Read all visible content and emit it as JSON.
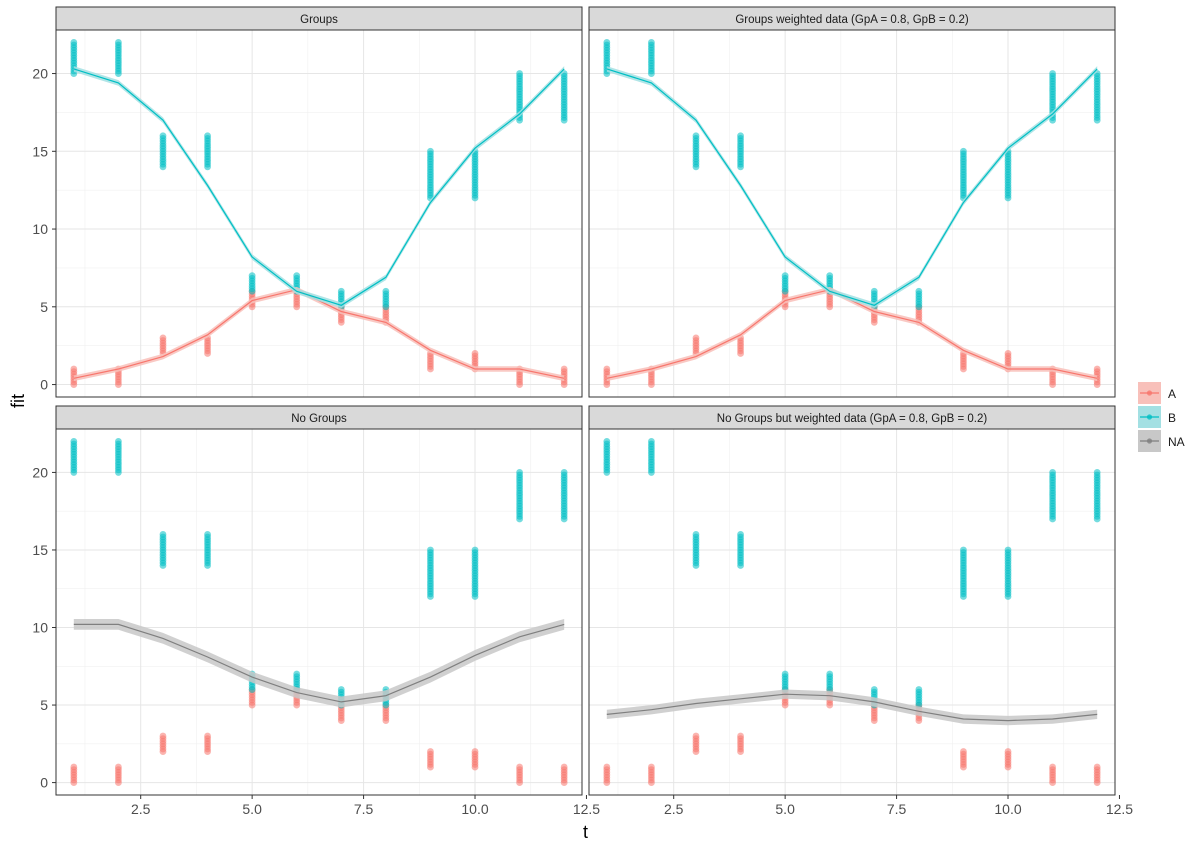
{
  "chart_data": {
    "type": "scatter",
    "xlabel": "t",
    "ylabel": "fit",
    "xlim": [
      0.6,
      12.4
    ],
    "ylim": [
      -0.8,
      22.8
    ],
    "x_ticks": [
      2.5,
      5.0,
      7.5,
      10.0,
      12.5
    ],
    "x_tick_labels": [
      "2.5",
      "5.0",
      "7.5",
      "10.0",
      "12.5"
    ],
    "y_ticks": [
      0,
      5,
      10,
      15,
      20
    ],
    "y_tick_labels": [
      "0",
      "5",
      "10",
      "15",
      "20"
    ],
    "grid": true,
    "legend": {
      "position": "right",
      "entries": [
        {
          "label": "A",
          "color": "#F8766D",
          "fill": "#F8C0BA"
        },
        {
          "label": "B",
          "color": "#00BFC4",
          "fill": "#A3E0E3"
        },
        {
          "label": "NA",
          "color": "#7F7F7F",
          "fill": "#C8C8C8"
        }
      ]
    },
    "points": {
      "t": [
        1,
        2,
        3,
        4,
        5,
        6,
        7,
        8,
        9,
        10,
        11,
        12
      ],
      "A_range": [
        [
          0,
          1
        ],
        [
          0,
          1
        ],
        [
          2,
          3
        ],
        [
          2,
          3
        ],
        [
          5,
          6
        ],
        [
          5,
          6
        ],
        [
          4,
          5
        ],
        [
          4,
          5
        ],
        [
          1,
          2
        ],
        [
          1,
          2
        ],
        [
          0,
          1
        ],
        [
          0,
          1
        ]
      ],
      "B_range": [
        [
          20,
          22
        ],
        [
          20,
          22
        ],
        [
          14,
          16
        ],
        [
          14,
          16
        ],
        [
          6,
          7
        ],
        [
          6,
          7
        ],
        [
          5,
          6
        ],
        [
          5,
          6
        ],
        [
          12,
          15
        ],
        [
          12,
          15
        ],
        [
          17,
          20
        ],
        [
          17,
          20
        ]
      ]
    },
    "panels": [
      {
        "title": "Groups",
        "lines": [
          {
            "name": "A",
            "color": "#F8766D",
            "x": [
              1,
              2,
              3,
              4,
              5,
              6,
              7,
              8,
              9,
              10,
              11,
              12
            ],
            "y": [
              0.4,
              1.0,
              1.8,
              3.2,
              5.4,
              6.1,
              4.7,
              4.0,
              2.2,
              1.0,
              1.0,
              0.4
            ]
          },
          {
            "name": "B",
            "color": "#00BFC4",
            "x": [
              1,
              2,
              3,
              4,
              5,
              6,
              7,
              8,
              9,
              10,
              11,
              12
            ],
            "y": [
              20.3,
              19.4,
              17.0,
              12.8,
              8.2,
              6.0,
              5.1,
              6.9,
              11.7,
              15.2,
              17.4,
              20.3
            ]
          }
        ]
      },
      {
        "title": "Groups weighted data (GpA = 0.8, GpB = 0.2)",
        "lines": [
          {
            "name": "A",
            "color": "#F8766D",
            "x": [
              1,
              2,
              3,
              4,
              5,
              6,
              7,
              8,
              9,
              10,
              11,
              12
            ],
            "y": [
              0.4,
              1.0,
              1.8,
              3.2,
              5.4,
              6.1,
              4.7,
              4.0,
              2.2,
              1.0,
              1.0,
              0.4
            ]
          },
          {
            "name": "B",
            "color": "#00BFC4",
            "x": [
              1,
              2,
              3,
              4,
              5,
              6,
              7,
              8,
              9,
              10,
              11,
              12
            ],
            "y": [
              20.3,
              19.4,
              17.0,
              12.8,
              8.2,
              6.0,
              5.1,
              6.9,
              11.7,
              15.2,
              17.4,
              20.3
            ]
          }
        ]
      },
      {
        "title": "No Groups",
        "lines": [
          {
            "name": "NA",
            "color": "#7F7F7F",
            "band": 0.35,
            "x": [
              1,
              2,
              3,
              4,
              5,
              6,
              7,
              8,
              9,
              10,
              11,
              12
            ],
            "y": [
              10.2,
              10.2,
              9.3,
              8.1,
              6.8,
              5.8,
              5.2,
              5.6,
              6.8,
              8.2,
              9.4,
              10.2
            ]
          }
        ]
      },
      {
        "title": "No Groups but weighted data (GpA = 0.8, GpB = 0.2)",
        "lines": [
          {
            "name": "NA",
            "color": "#7F7F7F",
            "band": 0.3,
            "x": [
              1,
              2,
              3,
              4,
              5,
              6,
              7,
              8,
              9,
              10,
              11,
              12
            ],
            "y": [
              4.4,
              4.7,
              5.1,
              5.4,
              5.7,
              5.6,
              5.2,
              4.6,
              4.1,
              4.0,
              4.1,
              4.4
            ]
          }
        ]
      }
    ]
  }
}
